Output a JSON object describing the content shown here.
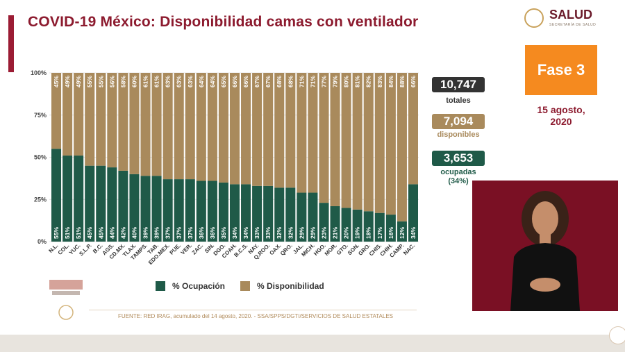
{
  "header": {
    "title": "COVID-19 México: Disponibilidad camas con ventilador",
    "logo_text": "SALUD",
    "logo_sub": "SECRETARÍA DE SALUD"
  },
  "phase": {
    "label": "Fase 3",
    "date_line1": "15 agosto,",
    "date_line2": "2020"
  },
  "stats": {
    "totales_value": "10,747",
    "totales_label": "totales",
    "disponibles_value": "7,094",
    "disponibles_label": "disponibles",
    "ocupadas_value": "3,653",
    "ocupadas_label": "ocupadas",
    "ocupadas_pct": "(34%)"
  },
  "legend": {
    "ocupacion": "% Ocupación",
    "disponibilidad": "% Disponibilidad"
  },
  "footer": {
    "source": "FUENTE: RED IRAG, acumulado del 14 agosto, 2020.  -  SSA/SPPS/DGTI/SERVICIOS DE SALUD ESTATALES"
  },
  "colors": {
    "ocupacion": "#1f5a48",
    "disponibilidad": "#a98a5c",
    "title": "#8c1a2e",
    "phase": "#f58a1f"
  },
  "chart_data": {
    "type": "bar",
    "stacked": true,
    "percent": true,
    "categories": [
      "N.L.",
      "COL.",
      "YUC.",
      "S.L.P.",
      "B.C.",
      "AGS.",
      "CD.MX.",
      "TLAX.",
      "TAMPS.",
      "TAB.",
      "EDO.MEX.",
      "PUE.",
      "VER.",
      "ZAC.",
      "SIN.",
      "DGO.",
      "COAH.",
      "B.C.S.",
      "NAY.",
      "Q.ROO.",
      "OAX.",
      "QRO.",
      "JAL.",
      "MICH.",
      "HGO.",
      "MOR.",
      "GTO.",
      "SON.",
      "GRO.",
      "CHIS.",
      "CHIH.",
      "CAMP.",
      "NAC."
    ],
    "series": [
      {
        "name": "% Ocupación",
        "values": [
          55,
          51,
          51,
          45,
          45,
          44,
          42,
          40,
          39,
          39,
          37,
          37,
          37,
          36,
          36,
          35,
          34,
          34,
          33,
          33,
          32,
          32,
          29,
          29,
          23,
          21,
          20,
          19,
          18,
          17,
          16,
          12,
          34
        ],
        "labels": [
          "55%",
          "51%",
          "51%",
          "45%",
          "45%",
          "44%",
          "42%",
          "40%",
          "39%",
          "39%",
          "37%",
          "37%",
          "37%",
          "36%",
          "36%",
          "35%",
          "34%",
          "34%",
          "33%",
          "33%",
          "32%",
          "32%",
          "29%",
          "29%",
          "23%",
          "21%",
          "20%",
          "19%",
          "18%",
          "17%",
          "16%",
          "12%",
          "34%"
        ]
      },
      {
        "name": "% Disponibilidad",
        "values": [
          45,
          49,
          49,
          55,
          55,
          56,
          58,
          60,
          61,
          61,
          63,
          63,
          63,
          64,
          64,
          65,
          66,
          66,
          67,
          67,
          68,
          68,
          71,
          71,
          77,
          79,
          80,
          81,
          82,
          83,
          84,
          88,
          66
        ],
        "labels": [
          "45%",
          "49%",
          "49%",
          "55%",
          "55%",
          "56%",
          "58%",
          "60%",
          "61%",
          "61%",
          "63%",
          "63%",
          "63%",
          "64%",
          "64%",
          "65%",
          "66%",
          "66%",
          "67%",
          "67%",
          "68%",
          "68%",
          "71%",
          "71%",
          "77%",
          "79%",
          "80%",
          "81%",
          "82%",
          "83%",
          "84%",
          "88%",
          "66%"
        ]
      }
    ],
    "ylim": [
      0,
      100
    ],
    "yticks": [
      "0%",
      "25%",
      "50%",
      "75%",
      "100%"
    ],
    "ytick_values": [
      0,
      25,
      50,
      75,
      100
    ],
    "legend_position": "bottom"
  }
}
